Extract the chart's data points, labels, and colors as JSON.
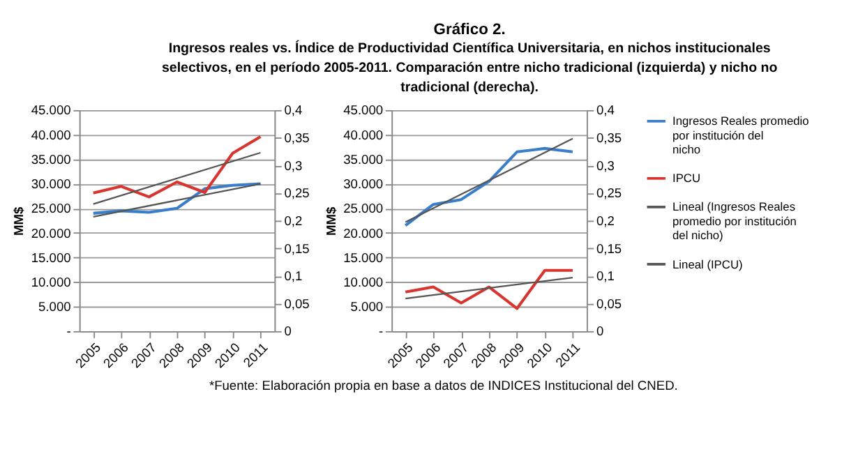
{
  "chart_data": [
    {
      "type": "other",
      "title": "Gráfico 2.",
      "subtitle": "Ingresos reales vs. Índice de Productividad Científica Universitaria, en nichos institucionales selectivos, en el período 2005-2011. Comparación entre nicho tradicional (izquierda) y nicho no tradicional (derecha)."
    },
    {
      "type": "line",
      "ylabel": "MM$",
      "categories": [
        "2005",
        "2006",
        "2007",
        "2008",
        "2009",
        "2010",
        "2011"
      ],
      "series": [
        {
          "color": "#3a7dc9",
          "values": [
            24000,
            24500,
            24200,
            25000,
            29000,
            29700,
            30000
          ]
        },
        {
          "color": "#555555",
          "values": [
            23300,
            null,
            null,
            null,
            null,
            null,
            30000
          ]
        },
        {
          "color": "#d9352f",
          "axis": "y2",
          "values": [
            0.25,
            0.262,
            0.243,
            0.27,
            0.251,
            0.322,
            0.352
          ]
        },
        {
          "color": "#555555",
          "axis": "y2",
          "values": [
            0.23,
            null,
            null,
            null,
            null,
            null,
            0.323
          ]
        }
      ],
      "ylim": [
        0,
        45000
      ],
      "yticks": [
        {
          "value": 0,
          "label": "-"
        },
        {
          "value": 5000,
          "label": "5.000"
        },
        {
          "value": 10000,
          "label": "10.000"
        },
        {
          "value": 15000,
          "label": "15.000"
        },
        {
          "value": 20000,
          "label": "20.000"
        },
        {
          "value": 25000,
          "label": "25.000"
        },
        {
          "value": 30000,
          "label": "30.000"
        },
        {
          "value": 35000,
          "label": "35.000"
        },
        {
          "value": 40000,
          "label": "40.000"
        },
        {
          "value": 45000,
          "label": "45.000"
        }
      ],
      "y2lim": [
        0,
        0.4
      ],
      "y2ticks": [
        0,
        {
          "value": 0.05,
          "label": "0,05"
        },
        {
          "value": 0.1,
          "label": "0,1"
        },
        {
          "value": 0.15,
          "label": "0,15"
        },
        {
          "value": 0.2,
          "label": "0,2"
        },
        {
          "value": 0.25,
          "label": "0,25"
        },
        {
          "value": 0.3,
          "label": "0,3"
        },
        {
          "value": 0.35,
          "label": "0,35"
        },
        {
          "value": 0.4,
          "label": "0,4"
        }
      ],
      "grid": "y",
      "line_style": "solid",
      "marker": "none"
    },
    {
      "type": "line",
      "ylabel": "MM$",
      "categories": [
        "2005",
        "2006",
        "2007",
        "2008",
        "2009",
        "2010",
        "2011"
      ],
      "series": [
        {
          "name": "Ingresos Reales promedio por institución del nicho",
          "color": "#3a7dc9",
          "values": [
            21500,
            25800,
            26800,
            30500,
            36500,
            37200,
            36500
          ]
        },
        {
          "name": "IPCU",
          "color": "#d9352f",
          "axis": "y2",
          "values": [
            0.071,
            0.08,
            0.051,
            0.08,
            0.041,
            0.11,
            0.11
          ]
        },
        {
          "name": "Lineal (Ingresos Reales promedio por institución del nicho)",
          "color": "#555555",
          "values": [
            22200,
            null,
            null,
            null,
            null,
            null,
            39200
          ]
        },
        {
          "name": "Lineal (IPCU)",
          "color": "#555555",
          "axis": "y2",
          "values": [
            0.059,
            null,
            null,
            null,
            null,
            null,
            0.097
          ]
        }
      ],
      "ylim": [
        0,
        45000
      ],
      "yticks": [
        {
          "value": 0,
          "label": "-"
        },
        {
          "value": 5000,
          "label": "5.000"
        },
        {
          "value": 10000,
          "label": "10.000"
        },
        {
          "value": 15000,
          "label": "15.000"
        },
        {
          "value": 20000,
          "label": "20.000"
        },
        {
          "value": 25000,
          "label": "25.000"
        },
        {
          "value": 30000,
          "label": "30.000"
        },
        {
          "value": 35000,
          "label": "35.000"
        },
        {
          "value": 40000,
          "label": "40.000"
        },
        {
          "value": 45000,
          "label": "45.000"
        }
      ],
      "y2lim": [
        0,
        0.4
      ],
      "y2ticks": [
        0,
        {
          "value": 0.05,
          "label": "0,05"
        },
        {
          "value": 0.1,
          "label": "0,1"
        },
        {
          "value": 0.15,
          "label": "0,15"
        },
        {
          "value": 0.2,
          "label": "0,2"
        },
        {
          "value": 0.25,
          "label": "0,25"
        },
        {
          "value": 0.3,
          "label": "0,3"
        },
        {
          "value": 0.35,
          "label": "0,35"
        },
        {
          "value": 0.4,
          "label": "0,4"
        }
      ],
      "grid": "y",
      "legend": "right",
      "line_style": "solid",
      "marker": "none",
      "annotations": [
        "*Fuente: Elaboración propia en base a datos de INDICES Institucional del CNED."
      ]
    }
  ]
}
